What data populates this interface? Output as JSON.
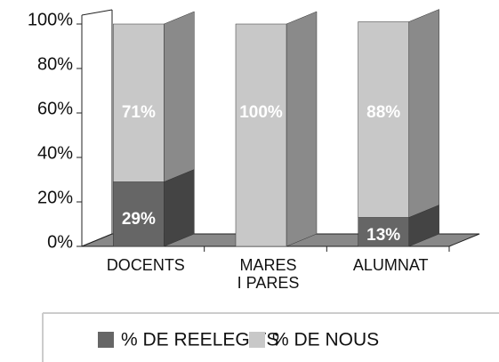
{
  "chart_data": {
    "type": "stacked-bar-3d",
    "categories": [
      "DOCENTS",
      "MARES I PARES",
      "ALUMNAT"
    ],
    "series": [
      {
        "name": "% DE REELEGITS",
        "color": "#666666",
        "side_color": "#444444",
        "values": [
          29,
          0,
          13
        ],
        "value_labels": [
          "29%",
          null,
          "13%"
        ]
      },
      {
        "name": "% DE NOUS",
        "color": "#c8c8c8",
        "side_color": "#8a8a8a",
        "values": [
          71,
          100,
          88
        ],
        "value_labels": [
          "71%",
          "100%",
          "88%"
        ]
      }
    ],
    "ylim": [
      0,
      100
    ],
    "yticks": [
      {
        "value": 0,
        "label": "0%"
      },
      {
        "value": 20,
        "label": "20%"
      },
      {
        "value": 40,
        "label": "40%"
      },
      {
        "value": 60,
        "label": "60%"
      },
      {
        "value": 80,
        "label": "80%"
      },
      {
        "value": 100,
        "label": "100%"
      }
    ],
    "legend": "bottom"
  }
}
